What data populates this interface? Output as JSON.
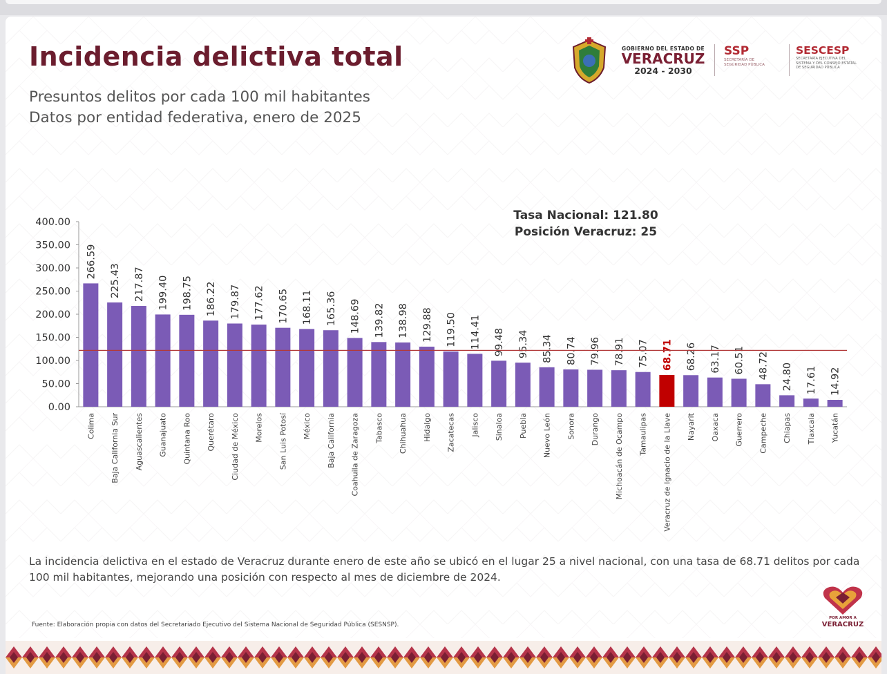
{
  "header": {
    "title": "Incidencia delictiva total",
    "subtitle_line1": "Presuntos delitos por cada 100 mil habitantes",
    "subtitle_line2": "Datos por entidad federativa, enero de 2025"
  },
  "logos": {
    "gob_line1": "GOBIERNO DEL ESTADO DE",
    "gob_line2": "VERACRUZ",
    "gob_line3": "2024 - 2030",
    "ssp_title": "SSP",
    "ssp_line1": "SECRETARÍA DE",
    "ssp_line2": "SEGURIDAD PÚBLICA",
    "sescesp_title": "SESCESP",
    "sescesp_line1": "SECRETARÍA EJECUTIVA DEL",
    "sescesp_line2": "SISTEMA Y DEL CONSEJO ESTATAL",
    "sescesp_line3": "DE SEGURIDAD PÚBLICA",
    "por_line1": "POR AMOR A",
    "por_line2": "VERACRUZ"
  },
  "stats": {
    "national": "Tasa Nacional: 121.80",
    "position": "Posición Veracruz: 25"
  },
  "chart_data": {
    "type": "bar",
    "ylim": [
      0,
      400
    ],
    "yticks": [
      "0.00",
      "50.00",
      "100.00",
      "150.00",
      "200.00",
      "250.00",
      "300.00",
      "350.00",
      "400.00"
    ],
    "reference_line": 121.8,
    "categories": [
      "Colima",
      "Baja California Sur",
      "Aguascalientes",
      "Guanajuato",
      "Quintana Roo",
      "Querétaro",
      "Ciudad de México",
      "Morelos",
      "San Luis Potosí",
      "México",
      "Baja California",
      "Coahuila de Zaragoza",
      "Tabasco",
      "Chihuahua",
      "Hidalgo",
      "Zacatecas",
      "Jalisco",
      "Sinaloa",
      "Puebla",
      "Nuevo León",
      "Sonora",
      "Durango",
      "Michoacán de Ocampo",
      "Tamaulipas",
      "Veracruz de Ignacio de la Llave",
      "Nayarit",
      "Oaxaca",
      "Guerrero",
      "Campeche",
      "Chiapas",
      "Tlaxcala",
      "Yucatán"
    ],
    "values": [
      266.59,
      225.43,
      217.87,
      199.4,
      198.75,
      186.22,
      179.87,
      177.62,
      170.65,
      168.11,
      165.36,
      148.69,
      139.82,
      138.98,
      129.88,
      119.5,
      114.41,
      99.48,
      95.34,
      85.34,
      80.74,
      79.96,
      78.91,
      75.07,
      68.71,
      68.26,
      63.17,
      60.51,
      48.72,
      24.8,
      17.61,
      14.92
    ],
    "labels": [
      "266.59",
      "225.43",
      "217.87",
      "199.40",
      "198.75",
      "186.22",
      "179.87",
      "177.62",
      "170.65",
      "168.11",
      "165.36",
      "148.69",
      "139.82",
      "138.98",
      "129.88",
      "119.50",
      "114.41",
      "99.48",
      "95.34",
      "85.34",
      "80.74",
      "79.96",
      "78.91",
      "75.07",
      "68.71",
      "68.26",
      "63.17",
      "60.51",
      "48.72",
      "24.80",
      "17.61",
      "14.92"
    ],
    "highlight_index": 24,
    "bar_color": "#7b5bb6",
    "highlight_color": "#c00000",
    "reference_color": "#b23a3a"
  },
  "footer": {
    "body": "La incidencia delictiva en el estado de Veracruz durante enero de este año se ubicó en el lugar 25 a nivel nacional, con una tasa de 68.71 delitos por cada 100 mil habitantes, mejorando una posición con respecto al mes de diciembre de 2024.",
    "source": "Fuente: Elaboración propia con datos del Secretariado Ejecutivo del Sistema Nacional de Seguridad Pública (SESNSP)."
  }
}
